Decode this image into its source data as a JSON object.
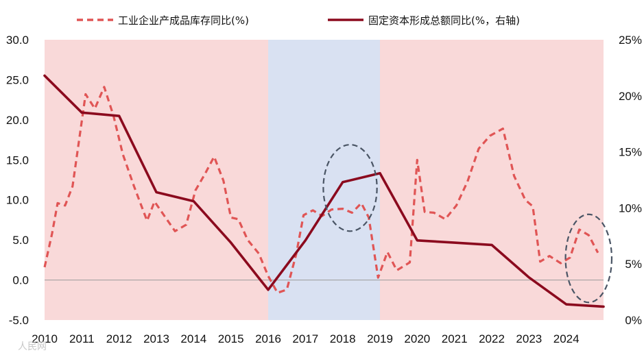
{
  "chart_data": {
    "type": "line",
    "legend": {
      "placement": "top",
      "entries": [
        {
          "name": "工业企业产成品库存同比(%)",
          "color": "#e05555",
          "style": "dashed"
        },
        {
          "name": "固定资本形成总额同比(%，右轴)",
          "color": "#8b0a1e",
          "style": "solid"
        }
      ]
    },
    "x_ticks": [
      "2010",
      "2011",
      "2012",
      "2013",
      "2014",
      "2015",
      "2016",
      "2017",
      "2018",
      "2019",
      "2020",
      "2021",
      "2022",
      "2023",
      "2024"
    ],
    "left_axis": {
      "ylim": [
        -5,
        30
      ],
      "ticks": [
        "-5.0",
        "0.0",
        "5.0",
        "10.0",
        "15.0",
        "20.0",
        "25.0",
        "30.0"
      ]
    },
    "right_axis": {
      "ylim": [
        0,
        25
      ],
      "ticks": [
        "0%",
        "5%",
        "10%",
        "15%",
        "20%",
        "25%"
      ]
    },
    "x_range": [
      2010,
      2025
    ],
    "bands": [
      {
        "from": 2010,
        "to": 2016.0,
        "color": "#f9d9d9"
      },
      {
        "from": 2016.0,
        "to": 2019.0,
        "color": "#d9e1f2"
      },
      {
        "from": 2019.0,
        "to": 2025,
        "color": "#f9d9d9"
      }
    ],
    "series": [
      {
        "name": "工业企业产成品库存同比(%)",
        "axis": "left",
        "color": "#e05555",
        "dash": true,
        "points": [
          [
            2010.0,
            1.6
          ],
          [
            2010.2,
            5.8
          ],
          [
            2010.35,
            9.6
          ],
          [
            2010.55,
            9.3
          ],
          [
            2010.75,
            11.7
          ],
          [
            2011.1,
            23.2
          ],
          [
            2011.35,
            21.4
          ],
          [
            2011.6,
            24.1
          ],
          [
            2011.85,
            20.5
          ],
          [
            2012.1,
            15.7
          ],
          [
            2012.4,
            11.7
          ],
          [
            2012.75,
            7.4
          ],
          [
            2012.95,
            9.8
          ],
          [
            2013.2,
            8.1
          ],
          [
            2013.5,
            6.1
          ],
          [
            2013.8,
            6.9
          ],
          [
            2014.05,
            11.2
          ],
          [
            2014.3,
            13.2
          ],
          [
            2014.55,
            15.4
          ],
          [
            2014.8,
            12.4
          ],
          [
            2015.0,
            7.8
          ],
          [
            2015.2,
            7.6
          ],
          [
            2015.45,
            5.0
          ],
          [
            2015.75,
            3.3
          ],
          [
            2016.0,
            0.5
          ],
          [
            2016.25,
            -1.6
          ],
          [
            2016.5,
            -1.2
          ],
          [
            2016.75,
            3.2
          ],
          [
            2016.95,
            8.1
          ],
          [
            2017.2,
            8.7
          ],
          [
            2017.45,
            8.0
          ],
          [
            2017.7,
            8.8
          ],
          [
            2018.0,
            8.9
          ],
          [
            2018.25,
            8.4
          ],
          [
            2018.5,
            9.6
          ],
          [
            2018.7,
            7.8
          ],
          [
            2018.95,
            0.3
          ],
          [
            2019.2,
            3.5
          ],
          [
            2019.45,
            1.2
          ],
          [
            2019.8,
            2.2
          ],
          [
            2020.0,
            15.0
          ],
          [
            2020.2,
            8.5
          ],
          [
            2020.45,
            8.4
          ],
          [
            2020.75,
            7.6
          ],
          [
            2021.05,
            9.3
          ],
          [
            2021.35,
            12.3
          ],
          [
            2021.65,
            16.4
          ],
          [
            2021.95,
            18.0
          ],
          [
            2022.3,
            18.9
          ],
          [
            2022.6,
            13.0
          ],
          [
            2022.9,
            10.0
          ],
          [
            2023.1,
            9.2
          ],
          [
            2023.3,
            2.3
          ],
          [
            2023.55,
            3.0
          ],
          [
            2023.85,
            2.1
          ],
          [
            2024.1,
            2.8
          ],
          [
            2024.35,
            6.3
          ],
          [
            2024.6,
            5.6
          ],
          [
            2024.85,
            3.4
          ]
        ]
      },
      {
        "name": "固定资本形成总额同比(%，右轴)",
        "axis": "right",
        "color": "#8b0a1e",
        "dash": false,
        "points": [
          [
            2010.0,
            21.8
          ],
          [
            2011.0,
            18.5
          ],
          [
            2012.0,
            18.2
          ],
          [
            2013.0,
            11.4
          ],
          [
            2014.0,
            10.6
          ],
          [
            2015.0,
            6.9
          ],
          [
            2016.0,
            2.7
          ],
          [
            2017.0,
            7.1
          ],
          [
            2018.0,
            12.3
          ],
          [
            2019.0,
            13.1
          ],
          [
            2020.0,
            7.1
          ],
          [
            2021.0,
            6.9
          ],
          [
            2022.0,
            6.7
          ],
          [
            2023.0,
            3.8
          ],
          [
            2024.0,
            1.4
          ],
          [
            2025.0,
            1.2
          ]
        ]
      }
    ],
    "annotations": [
      {
        "type": "dashed-ellipse",
        "cx": 2018.2,
        "cy_left": 11.5,
        "rx_years": 0.72,
        "ry_units": 5.4
      },
      {
        "type": "dashed-ellipse",
        "cx": 2024.6,
        "cy_left": 2.7,
        "rx_years": 0.62,
        "ry_units": 5.5
      }
    ]
  },
  "watermark": "人民网"
}
